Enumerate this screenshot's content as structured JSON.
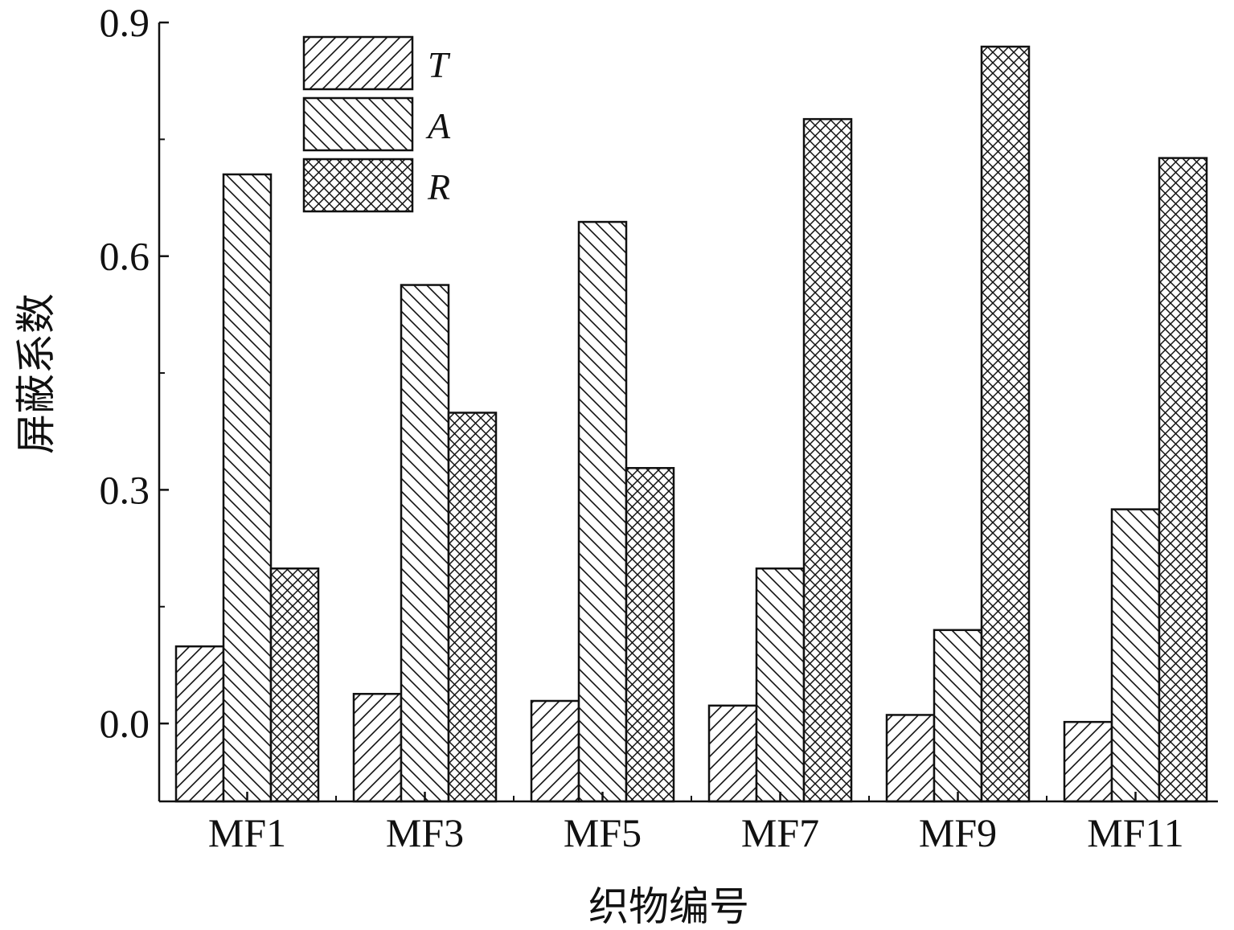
{
  "chart_data": {
    "type": "bar",
    "xlabel": "织物编号",
    "ylabel": "屏蔽系数",
    "categories": [
      "MF1",
      "MF3",
      "MF5",
      "MF7",
      "MF9",
      "MF11"
    ],
    "series": [
      {
        "name": "T",
        "pattern": "forward-hatch",
        "values": [
          0.099,
          0.038,
          0.029,
          0.023,
          0.011,
          0.002
        ]
      },
      {
        "name": "A",
        "pattern": "backward-hatch",
        "values": [
          0.705,
          0.563,
          0.644,
          0.199,
          0.12,
          0.275
        ]
      },
      {
        "name": "R",
        "pattern": "crosshatch",
        "values": [
          0.199,
          0.399,
          0.328,
          0.776,
          0.869,
          0.726
        ]
      }
    ],
    "ylim": [
      -0.1,
      0.9
    ],
    "yticks": [
      "0.0",
      "0.3",
      "0.6",
      "0.9"
    ],
    "ytick_values": [
      0.0,
      0.3,
      0.6,
      0.9
    ],
    "legend_position": "top-left",
    "grid": false,
    "colors": {
      "bar_fill": "#ffffff",
      "stroke": "#111111"
    }
  }
}
